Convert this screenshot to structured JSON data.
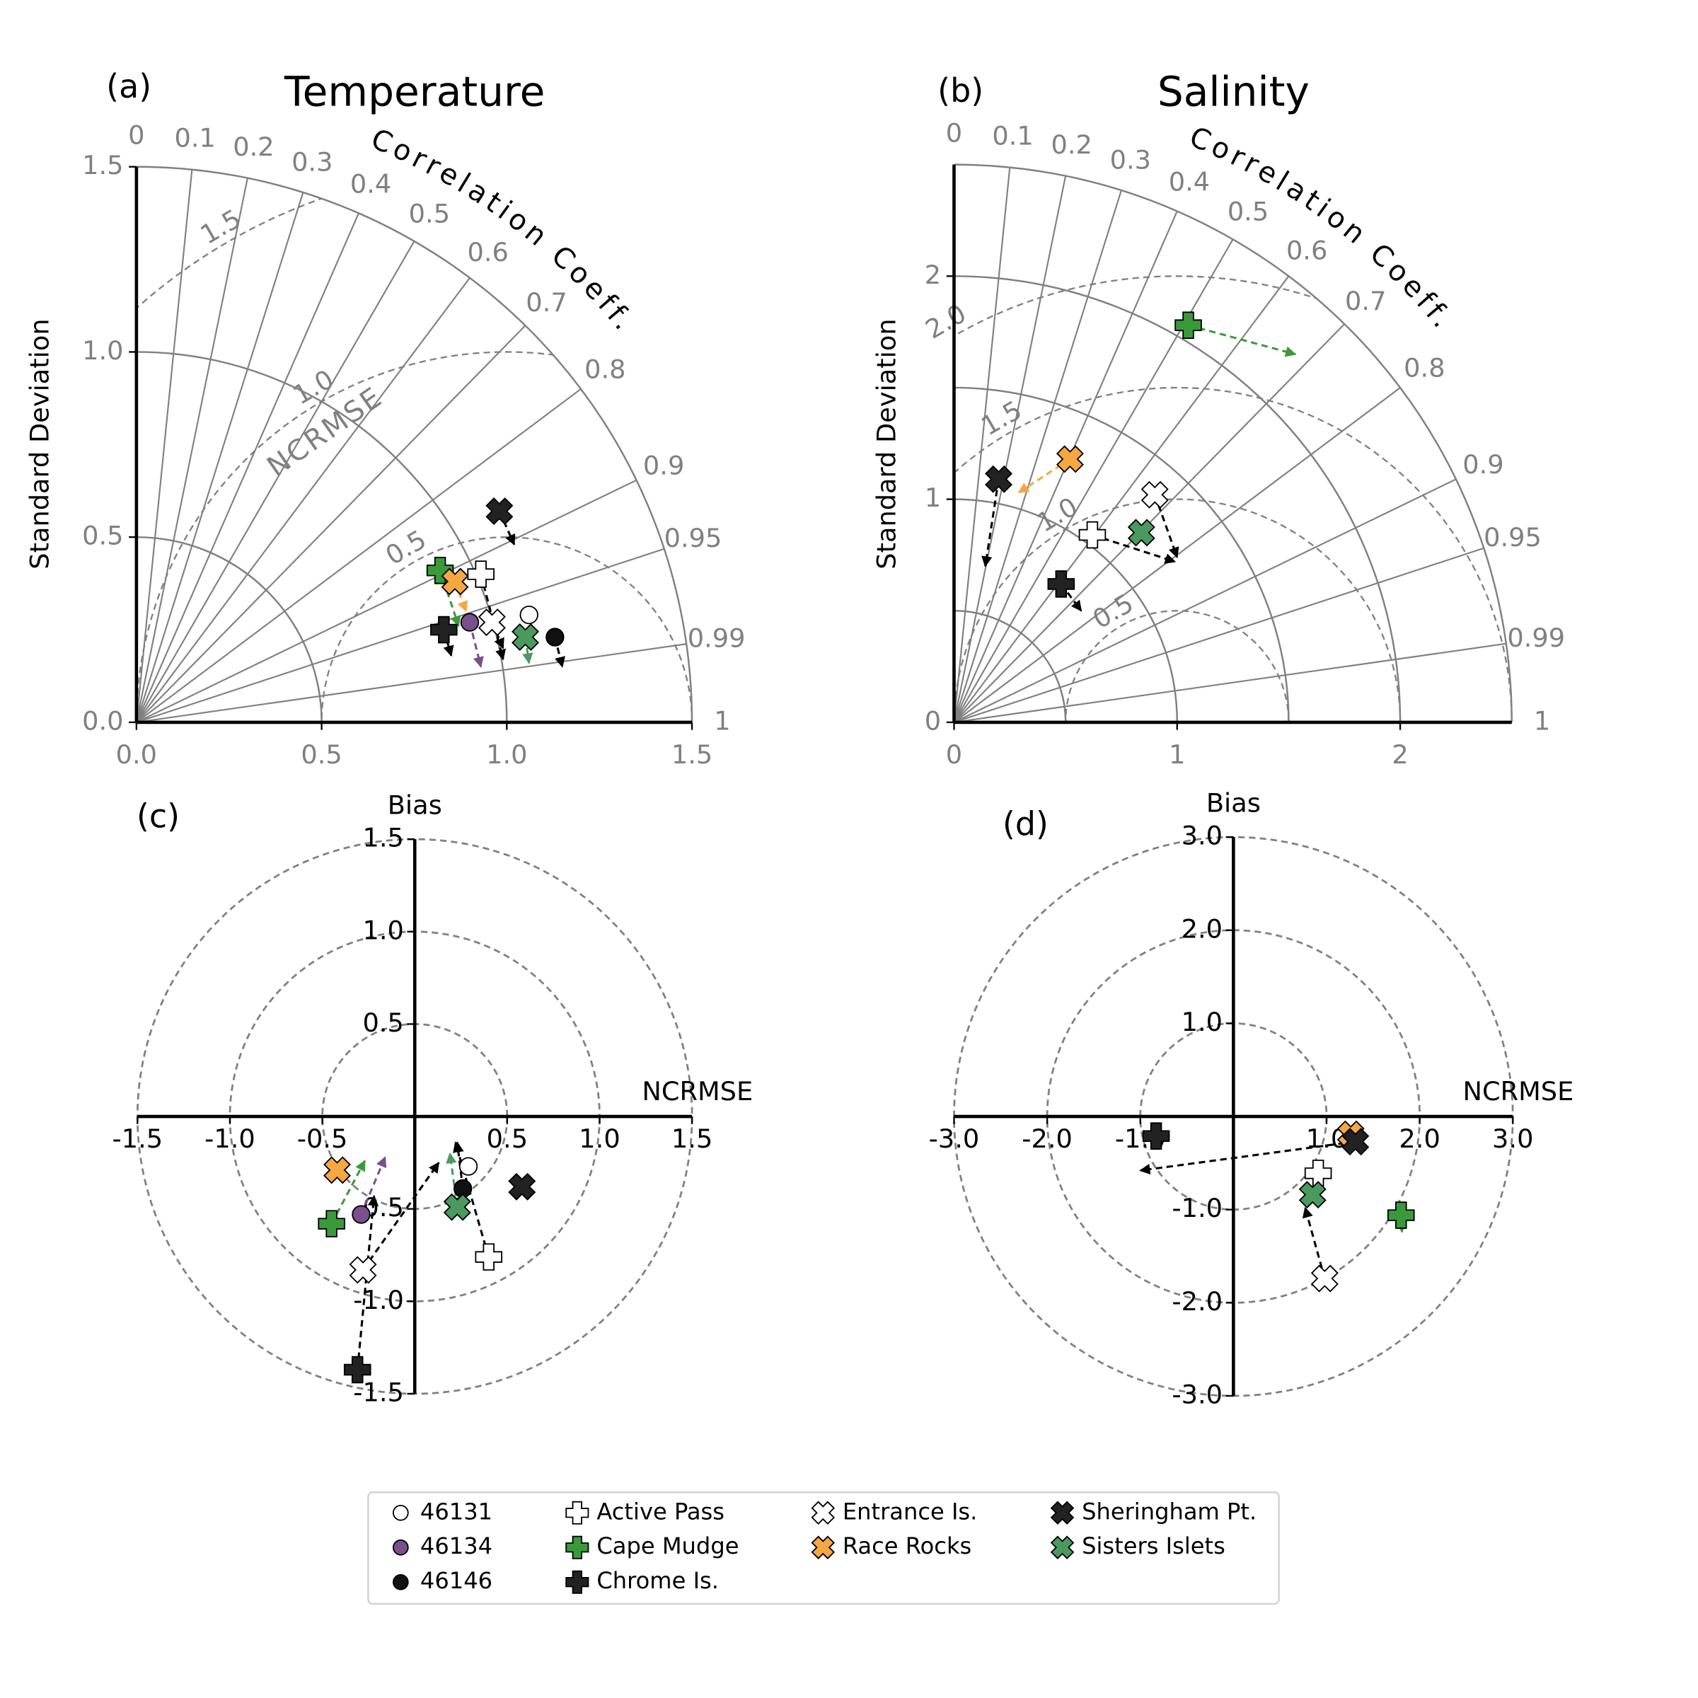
{
  "legend": [
    {
      "name": "46131",
      "marker": "circle",
      "color": "#ffffff"
    },
    {
      "name": "46134",
      "marker": "circle",
      "color": "#7b4f8e"
    },
    {
      "name": "46146",
      "marker": "circle",
      "color": "#111111"
    },
    {
      "name": "Active Pass",
      "marker": "plus",
      "color": "#ffffff"
    },
    {
      "name": "Cape Mudge",
      "marker": "plus",
      "color": "#3a9a3a"
    },
    {
      "name": "Chrome Is.",
      "marker": "plus",
      "color": "#222222"
    },
    {
      "name": "Entrance Is.",
      "marker": "x",
      "color": "#ffffff"
    },
    {
      "name": "Race Rocks",
      "marker": "x",
      "color": "#f5a742"
    },
    {
      "name": "Sheringham Pt.",
      "marker": "x",
      "color": "#222222"
    },
    {
      "name": "Sisters Islets",
      "marker": "x",
      "color": "#4a9a60"
    }
  ],
  "chart_data": [
    {
      "type": "taylor",
      "panel": "(a)",
      "title": "Temperature",
      "ylabel": "Standard Deviation",
      "corr_label": "Correlation Coeff.",
      "rmse_label": "NCRMSE",
      "xlim": [
        0,
        1.5
      ],
      "ylim": [
        0,
        1.5
      ],
      "xticks": [
        {
          "value": 0,
          "label": "0.0"
        },
        0.5,
        {
          "value": 1,
          "label": "1.0"
        },
        1.5
      ],
      "yticks": [
        {
          "value": 0,
          "label": "0.0"
        },
        0.5,
        {
          "value": 1,
          "label": "1.0"
        },
        1.5
      ],
      "std_grid": [
        0.5,
        1,
        1.5
      ],
      "ref_std": 1,
      "corr_ticks": [
        0,
        0.1,
        0.2,
        0.3,
        0.4,
        0.5,
        0.6,
        0.7,
        0.8,
        0.9,
        0.95,
        0.99,
        1
      ],
      "rmse_ticks": [
        0.5,
        {
          "value": 1,
          "label": "1.0"
        },
        1.5
      ],
      "series": [
        {
          "name": "46131",
          "x": [
            1.06,
            null
          ],
          "y": [
            0.29,
            null
          ]
        },
        {
          "name": "46134",
          "x": [
            0.9,
            0.93
          ],
          "y": [
            0.27,
            0.15
          ]
        },
        {
          "name": "46146",
          "x": [
            1.13,
            1.15
          ],
          "y": [
            0.23,
            0.15
          ]
        },
        {
          "name": "Active Pass",
          "x": [
            0.93,
            0.99
          ],
          "y": [
            0.4,
            0.17
          ]
        },
        {
          "name": "Cape Mudge",
          "x": [
            0.82,
            0.87
          ],
          "y": [
            0.41,
            0.26
          ]
        },
        {
          "name": "Chrome Is.",
          "x": [
            0.83,
            0.85
          ],
          "y": [
            0.25,
            0.18
          ]
        },
        {
          "name": "Entrance Is.",
          "x": [
            0.96,
            0.99
          ],
          "y": [
            0.27,
            0.2
          ]
        },
        {
          "name": "Race Rocks",
          "x": [
            0.86,
            0.89
          ],
          "y": [
            0.38,
            0.3
          ]
        },
        {
          "name": "Sheringham Pt.",
          "x": [
            0.98,
            1.02
          ],
          "y": [
            0.57,
            0.48
          ]
        },
        {
          "name": "Sisters Islets",
          "x": [
            1.05,
            1.06
          ],
          "y": [
            0.23,
            0.16
          ]
        }
      ]
    },
    {
      "type": "taylor",
      "panel": "(b)",
      "title": "Salinity",
      "ylabel": "Standard Deviation",
      "corr_label": "Correlation Coeff.",
      "xlim": [
        0,
        2.5
      ],
      "ylim": [
        0,
        2.5
      ],
      "xticks": [
        0,
        1,
        2
      ],
      "yticks": [
        0,
        1,
        2
      ],
      "std_grid": [
        0.5,
        1,
        1.5,
        2,
        2.5
      ],
      "ref_std": 1,
      "corr_ticks": [
        0,
        0.1,
        0.2,
        0.3,
        0.4,
        0.5,
        0.6,
        0.7,
        0.8,
        0.9,
        0.95,
        0.99,
        1
      ],
      "rmse_ticks": [
        0.5,
        {
          "value": 1,
          "label": "1.0"
        },
        1.5,
        {
          "value": 2,
          "label": "2.0"
        }
      ],
      "series": [
        {
          "name": "Active Pass",
          "x": [
            0.62,
            0.99
          ],
          "y": [
            0.84,
            0.72
          ]
        },
        {
          "name": "Cape Mudge",
          "x": [
            1.05,
            1.53
          ],
          "y": [
            1.78,
            1.65
          ]
        },
        {
          "name": "Chrome Is.",
          "x": [
            0.48,
            0.57
          ],
          "y": [
            0.62,
            0.5
          ]
        },
        {
          "name": "Entrance Is.",
          "x": [
            0.9,
            1.0
          ],
          "y": [
            1.02,
            0.74
          ]
        },
        {
          "name": "Race Rocks",
          "x": [
            0.52,
            0.29
          ],
          "y": [
            1.18,
            1.03
          ]
        },
        {
          "name": "Sheringham Pt.",
          "x": [
            0.2,
            0.14
          ],
          "y": [
            1.09,
            0.7
          ]
        },
        {
          "name": "Sisters Islets",
          "x": [
            0.84,
            null
          ],
          "y": [
            0.85,
            null
          ]
        }
      ]
    },
    {
      "type": "target",
      "panel": "(c)",
      "xlabel": "NCRMSE",
      "ylabel": "Bias",
      "xlim": [
        -1.5,
        1.5
      ],
      "ylim": [
        -1.5,
        1.5
      ],
      "xticks": [
        -1.5,
        {
          "value": -1,
          "label": "-1.0"
        },
        -0.5,
        0.5,
        {
          "value": 1,
          "label": "1.0"
        },
        1.5
      ],
      "yticks": [
        1.5,
        {
          "value": 1,
          "label": "1.0"
        },
        0.5,
        -0.5,
        {
          "value": -1,
          "label": "-1.0"
        },
        -1.5
      ],
      "rings": [
        0.5,
        1,
        1.5
      ],
      "series": [
        {
          "name": "46131",
          "x": [
            0.29,
            null
          ],
          "y": [
            -0.27,
            null
          ]
        },
        {
          "name": "46134",
          "x": [
            -0.29,
            -0.16
          ],
          "y": [
            -0.53,
            -0.22
          ]
        },
        {
          "name": "46146",
          "x": [
            0.26,
            0.23
          ],
          "y": [
            -0.39,
            -0.14
          ]
        },
        {
          "name": "Active Pass",
          "x": [
            0.4,
            0.22
          ],
          "y": [
            -0.76,
            -0.14
          ]
        },
        {
          "name": "Cape Mudge",
          "x": [
            -0.45,
            -0.27
          ],
          "y": [
            -0.58,
            -0.24
          ]
        },
        {
          "name": "Chrome Is.",
          "x": [
            -0.31,
            -0.22
          ],
          "y": [
            -1.37,
            -0.43
          ]
        },
        {
          "name": "Entrance Is.",
          "x": [
            -0.28,
            0.13
          ],
          "y": [
            -0.83,
            -0.25
          ]
        },
        {
          "name": "Race Rocks",
          "x": [
            -0.42,
            null
          ],
          "y": [
            -0.29,
            null
          ]
        },
        {
          "name": "Sheringham Pt.",
          "x": [
            0.58,
            null
          ],
          "y": [
            -0.38,
            null
          ]
        },
        {
          "name": "Sisters Islets",
          "x": [
            0.23,
            0.19
          ],
          "y": [
            -0.49,
            -0.2
          ]
        }
      ]
    },
    {
      "type": "target",
      "panel": "(d)",
      "xlabel": "NCRMSE",
      "ylabel": "Bias",
      "xlim": [
        -3,
        3
      ],
      "ylim": [
        -3,
        3
      ],
      "xticks": [
        {
          "value": -3,
          "label": "-3.0"
        },
        {
          "value": -2,
          "label": "-2.0"
        },
        {
          "value": -1,
          "label": "-1.0"
        },
        {
          "value": 1,
          "label": "1.0"
        },
        {
          "value": 2,
          "label": "2.0"
        },
        {
          "value": 3,
          "label": "3.0"
        }
      ],
      "yticks": [
        {
          "value": 3,
          "label": "3.0"
        },
        {
          "value": 2,
          "label": "2.0"
        },
        {
          "value": 1,
          "label": "1.0"
        },
        {
          "value": -1,
          "label": "-1.0"
        },
        {
          "value": -2,
          "label": "-2.0"
        },
        {
          "value": -3,
          "label": "-3.0"
        }
      ],
      "rings": [
        1,
        2,
        3
      ],
      "series": [
        {
          "name": "Active Pass",
          "x": [
            0.91,
            null
          ],
          "y": [
            -0.61,
            null
          ]
        },
        {
          "name": "Cape Mudge",
          "x": [
            1.8,
            1.81
          ],
          "y": [
            -1.06,
            -1.24
          ]
        },
        {
          "name": "Chrome Is.",
          "x": [
            -0.83,
            null
          ],
          "y": [
            -0.21,
            null
          ]
        },
        {
          "name": "Entrance Is.",
          "x": [
            0.98,
            0.77
          ],
          "y": [
            -1.74,
            -0.98
          ]
        },
        {
          "name": "Race Rocks",
          "x": [
            1.26,
            null
          ],
          "y": [
            -0.19,
            null
          ]
        },
        {
          "name": "Sheringham Pt.",
          "x": [
            1.31,
            -1.0
          ],
          "y": [
            -0.27,
            -0.58
          ]
        },
        {
          "name": "Sisters Islets",
          "x": [
            0.85,
            null
          ],
          "y": [
            -0.84,
            null
          ]
        }
      ]
    }
  ]
}
